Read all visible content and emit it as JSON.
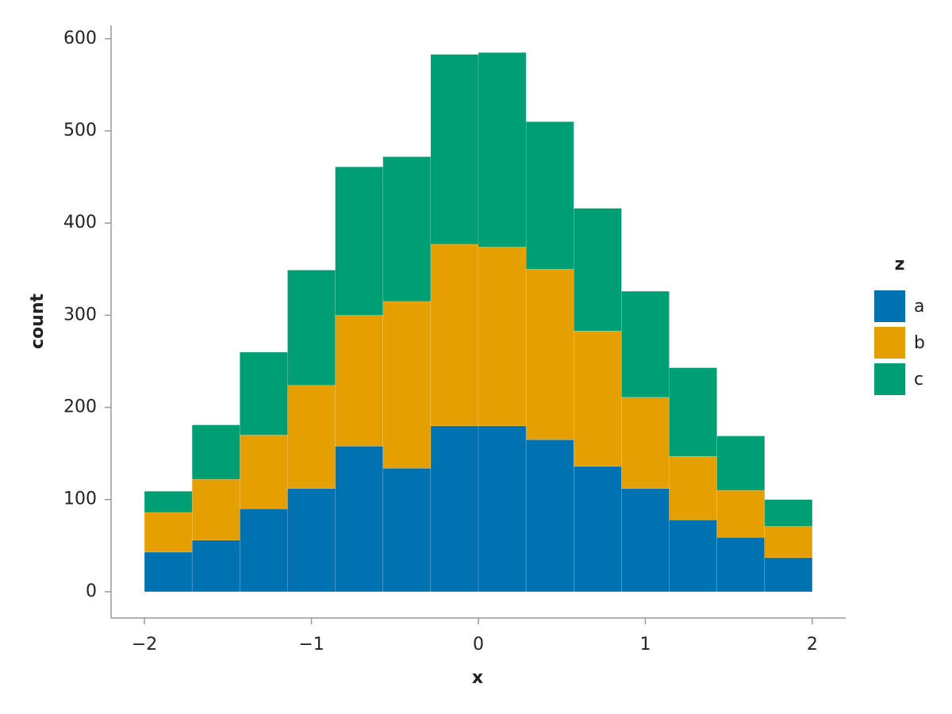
{
  "chart_data": {
    "type": "histogram",
    "x_label": "x",
    "y_label": "count",
    "legend_title": "z",
    "bins": [
      -2,
      -1.7143,
      -1.4286,
      -1.1429,
      -0.8571,
      -0.5714,
      -0.2857,
      0,
      0.2857,
      0.5714,
      0.8571,
      1.1429,
      1.4286,
      1.7143,
      2
    ],
    "series": [
      {
        "name": "a",
        "color": "#0072b2",
        "values": [
          43,
          56,
          90,
          112,
          158,
          134,
          180,
          180,
          165,
          136,
          112,
          78,
          59,
          37
        ]
      },
      {
        "name": "b",
        "color": "#e69f00",
        "values": [
          43,
          66,
          80,
          112,
          142,
          181,
          197,
          194,
          185,
          147,
          99,
          69,
          51,
          34
        ]
      },
      {
        "name": "c",
        "color": "#009e73",
        "values": [
          23,
          59,
          90,
          125,
          161,
          157,
          206,
          211,
          160,
          133,
          115,
          96,
          59,
          29
        ]
      }
    ],
    "stacked": true,
    "xlim": [
      -2.2,
      2.2
    ],
    "ylim": [
      -28.5,
      614.5
    ],
    "xticks": [
      {
        "value": -2,
        "label": "−2"
      },
      {
        "value": -1,
        "label": "−1"
      },
      0,
      1,
      2
    ],
    "yticks": [
      0,
      100,
      200,
      300,
      400,
      500,
      600
    ],
    "legend": "right"
  }
}
